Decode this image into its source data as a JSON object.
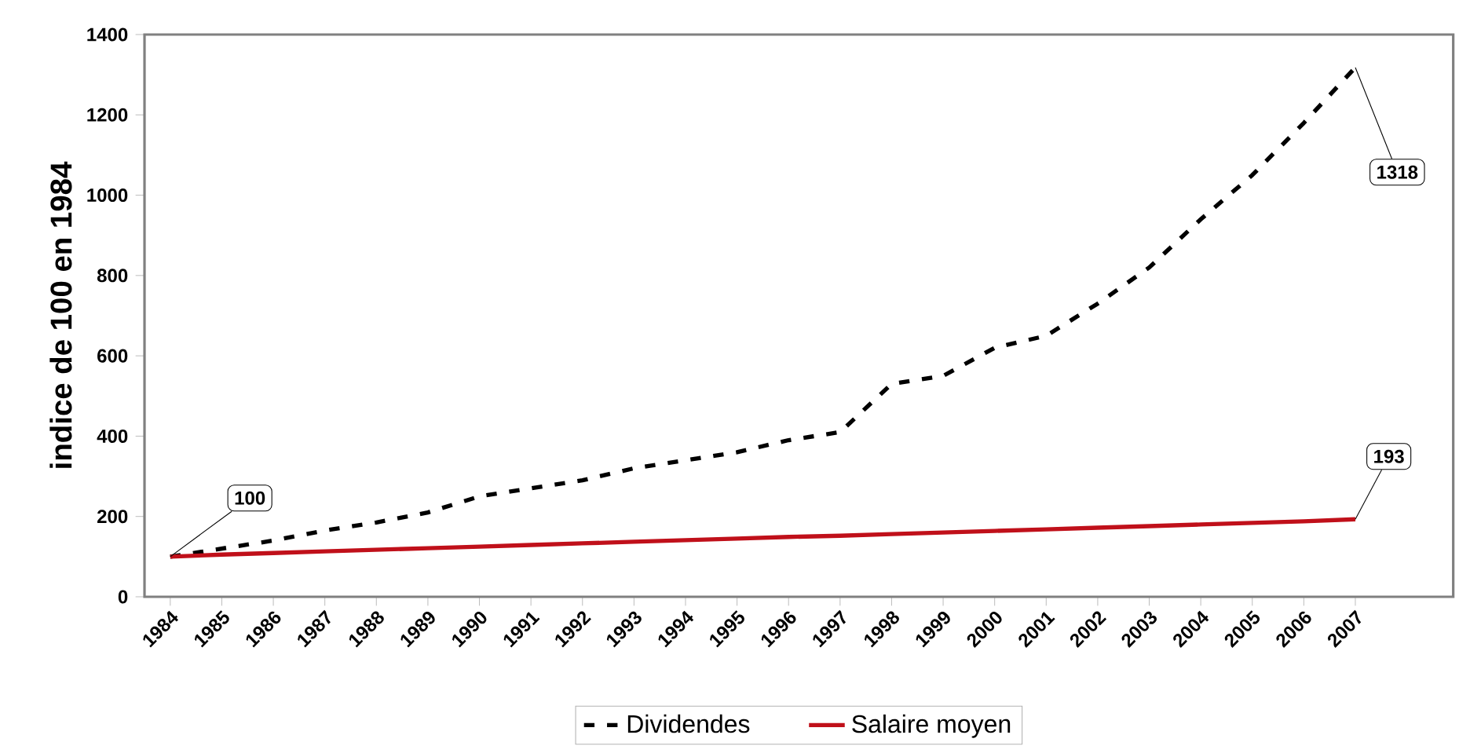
{
  "chart_data": {
    "type": "line",
    "ylabel": "indice de 100 en 1984",
    "categories": [
      "1984",
      "1985",
      "1986",
      "1987",
      "1988",
      "1989",
      "1990",
      "1991",
      "1992",
      "1993",
      "1994",
      "1995",
      "1996",
      "1997",
      "1998",
      "1999",
      "2000",
      "2001",
      "2002",
      "2003",
      "2004",
      "2005",
      "2006",
      "2007"
    ],
    "series": [
      {
        "name": "Dividendes",
        "color": "#000000",
        "line_style": "dashed",
        "values": [
          100,
          120,
          140,
          165,
          185,
          210,
          250,
          270,
          290,
          320,
          340,
          360,
          390,
          410,
          530,
          550,
          620,
          650,
          730,
          820,
          940,
          1050,
          1180,
          1318
        ]
      },
      {
        "name": "Salaire moyen",
        "color": "#c0101a",
        "line_style": "solid",
        "values": [
          100,
          105,
          109,
          113,
          117,
          121,
          125,
          129,
          133,
          137,
          141,
          145,
          149,
          152,
          156,
          160,
          164,
          168,
          172,
          176,
          180,
          184,
          188,
          193
        ]
      }
    ],
    "ylim": [
      0,
      1400
    ],
    "yticks": [
      0,
      200,
      400,
      600,
      800,
      1000,
      1200,
      1400
    ],
    "annotations": [
      {
        "text": "100",
        "x": "1984",
        "y": 100
      },
      {
        "text": "193",
        "x": "2007",
        "y": 193
      },
      {
        "text": "1318",
        "x": "2007",
        "y": 1318
      }
    ],
    "legend": "bottom",
    "grid": false,
    "marker": "none"
  }
}
